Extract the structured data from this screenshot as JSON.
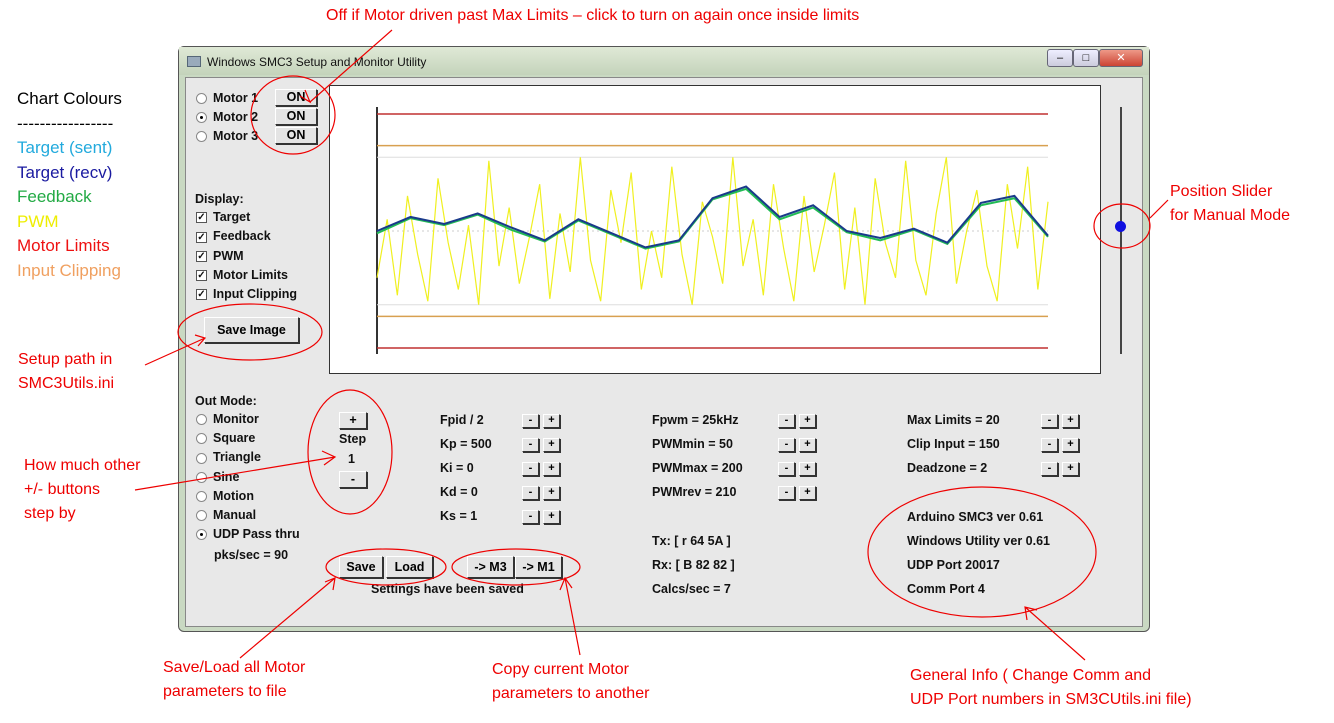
{
  "window": {
    "title": "Windows SMC3 Setup and Monitor Utility",
    "min": "‒",
    "max": "□",
    "close": "✕"
  },
  "motors": [
    {
      "label": "Motor 1",
      "state": "ON",
      "selected": false
    },
    {
      "label": "Motor 2",
      "state": "ON",
      "selected": true
    },
    {
      "label": "Motor 3",
      "state": "ON",
      "selected": false
    }
  ],
  "display": {
    "heading": "Display:",
    "items": [
      {
        "label": "Target",
        "checked": true
      },
      {
        "label": "Feedback",
        "checked": true
      },
      {
        "label": "PWM",
        "checked": true
      },
      {
        "label": "Motor Limits",
        "checked": true
      },
      {
        "label": "Input Clipping",
        "checked": true
      }
    ]
  },
  "save_image": "Save Image",
  "out_mode": {
    "heading": "Out Mode:",
    "options": [
      "Monitor",
      "Square",
      "Triangle",
      "Sine",
      "Motion",
      "Manual",
      "UDP Pass thru"
    ],
    "selected": 6,
    "pks": "pks/sec = 90"
  },
  "step": {
    "plus": "+",
    "label": "Step",
    "value": "1",
    "minus": "-"
  },
  "params_col1": [
    "Fpid / 2",
    "Kp = 500",
    "Ki = 0",
    "Kd = 0",
    "Ks = 1"
  ],
  "params_col2": [
    "Fpwm = 25kHz",
    "PWMmin = 50",
    "PWMmax = 200",
    "PWMrev = 210"
  ],
  "params_col3": [
    "Max Limits = 20",
    "Clip Input = 150",
    "Deadzone = 2"
  ],
  "pm": {
    "minus": "-",
    "plus": "+"
  },
  "comm": {
    "tx": "Tx: [ r 64 5A ]",
    "rx": "Rx: [ B 82 82 ]",
    "calcs": "Calcs/sec = 7"
  },
  "info": [
    "Arduino SMC3 ver 0.61",
    "Windows Utility ver 0.61",
    "UDP Port 20017",
    "Comm Port 4"
  ],
  "file_buttons": {
    "save": "Save",
    "load": "Load",
    "to_m3": "-> M3",
    "to_m1": "-> M1",
    "status": "Settings have been saved"
  },
  "slider": {
    "value": 0
  },
  "chart_data": {
    "type": "line",
    "ylim": [
      -100,
      100
    ],
    "limits": {
      "motor": [
        -100,
        100
      ],
      "clip": [
        -73,
        73
      ],
      "pwm_band": [
        -63,
        63
      ]
    },
    "series": [
      {
        "name": "Target",
        "color": "#1a3a8a",
        "x": [
          0,
          5,
          10,
          15,
          20,
          25,
          30,
          35,
          40,
          45,
          50,
          55,
          60,
          65,
          70,
          75,
          80,
          85,
          90,
          95,
          100
        ],
        "values": [
          0,
          12,
          6,
          15,
          3,
          -8,
          10,
          -2,
          -14,
          -8,
          28,
          38,
          12,
          22,
          0,
          -6,
          2,
          -10,
          24,
          30,
          -4
        ]
      },
      {
        "name": "Feedback",
        "color": "#22bb55",
        "x": [
          0,
          5,
          10,
          15,
          20,
          25,
          30,
          35,
          40,
          45,
          50,
          55,
          60,
          65,
          70,
          75,
          80,
          85,
          90,
          95,
          100
        ],
        "values": [
          -2,
          11,
          5,
          14,
          1,
          -9,
          9,
          -3,
          -15,
          -9,
          27,
          36,
          10,
          20,
          -1,
          -8,
          1,
          -11,
          22,
          28,
          -5
        ]
      },
      {
        "name": "PWM",
        "color": "#f0f020",
        "values": [
          -40,
          10,
          -55,
          30,
          -20,
          -60,
          45,
          -10,
          -50,
          5,
          -63,
          60,
          -30,
          20,
          -45,
          -5,
          40,
          -58,
          15,
          -35,
          63,
          -25,
          -60,
          35,
          -10,
          50,
          -50,
          0,
          -40,
          55,
          -20,
          -63,
          25,
          -5,
          -45,
          63,
          -30,
          10,
          -55,
          40,
          -15,
          -60,
          30,
          -35,
          5,
          50,
          -50,
          20,
          -63,
          45,
          -10,
          -40,
          60,
          -25,
          -55,
          15,
          63,
          -45,
          0,
          35,
          -30,
          -60,
          40,
          -15,
          55,
          -50,
          25
        ]
      }
    ]
  },
  "chart_colours": {
    "heading": "Chart Colours",
    "divider": "-----------------",
    "items": [
      {
        "label": "Target (sent)",
        "color": "#22aadd"
      },
      {
        "label": "Target (recv)",
        "color": "#1a1aa0"
      },
      {
        "label": "Feedback",
        "color": "#22aa44"
      },
      {
        "label": "PWM",
        "color": "#eeee00"
      },
      {
        "label": "Motor Limits",
        "color": "#ee1111"
      },
      {
        "label": "Input Clipping",
        "color": "#f0a060"
      }
    ]
  },
  "annotations": {
    "top": "Off if Motor driven past Max Limits – click to turn on again once inside limits",
    "slider": [
      "Position Slider",
      "for Manual Mode"
    ],
    "setup": [
      "Setup path in",
      "SMC3Utils.ini"
    ],
    "step": [
      "How much other",
      "+/- buttons",
      "step by"
    ],
    "saveload": [
      "Save/Load all Motor",
      "parameters to file"
    ],
    "copy": [
      "Copy current Motor",
      "parameters to another"
    ],
    "info": [
      "General Info ( Change Comm and",
      "UDP Port numbers in SM3CUtils.ini file)"
    ]
  }
}
